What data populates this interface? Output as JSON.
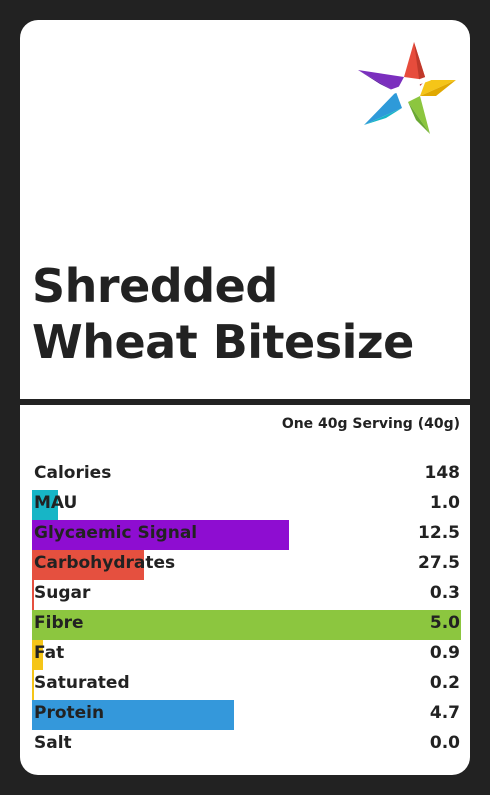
{
  "product": {
    "title_line1": "Shredded",
    "title_line2": "Wheat Bitesize"
  },
  "logo": {
    "icon": "star-logo-icon",
    "colors": [
      "#7b2fbe",
      "#e74c3c",
      "#f5c518",
      "#8cc63f",
      "#2e9ad9",
      "#17b5c6"
    ]
  },
  "serving": "One 40g Serving (40g)",
  "nutrients": [
    {
      "label": "Calories",
      "value": "148",
      "bar_fraction": 0,
      "color": ""
    },
    {
      "label": "MAU",
      "value": "1.0",
      "bar_fraction": 0.06,
      "color": "#17b5c6"
    },
    {
      "label": "Glycaemic Signal",
      "value": "12.5",
      "bar_fraction": 0.6,
      "color": "#8e0dd1"
    },
    {
      "label": "Carbohydrates",
      "value": "27.5",
      "bar_fraction": 0.26,
      "color": "#e5503f"
    },
    {
      "label": "Sugar",
      "value": "0.3",
      "bar_fraction": 0.004,
      "color": "#e5503f"
    },
    {
      "label": "Fibre",
      "value": "5.0",
      "bar_fraction": 1.0,
      "color": "#8cc63f"
    },
    {
      "label": "Fat",
      "value": "0.9",
      "bar_fraction": 0.025,
      "color": "#f5c518"
    },
    {
      "label": "Saturated",
      "value": "0.2",
      "bar_fraction": 0.004,
      "color": "#f5c518"
    },
    {
      "label": "Protein",
      "value": "4.7",
      "bar_fraction": 0.47,
      "color": "#3498db"
    },
    {
      "label": "Salt",
      "value": "0.0",
      "bar_fraction": 0,
      "color": ""
    }
  ]
}
